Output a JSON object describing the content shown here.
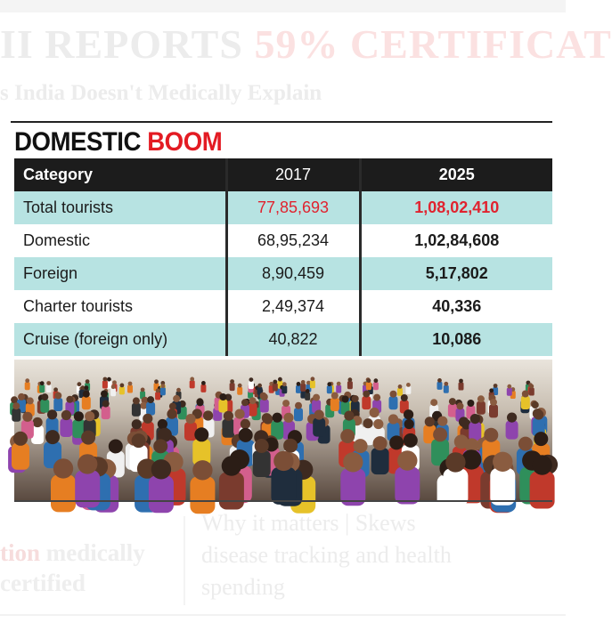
{
  "background": {
    "headline_black": "II REPORTS ",
    "headline_red": "59% CERTIFICAT",
    "subheadline": "s India Doesn't Medically Explain",
    "left_fragment_strong": "tion",
    "left_fragment_rest": " medically",
    "left_fragment_line2": "certified",
    "why_label": "Why it matters | Skews",
    "why_line2": "disease tracking and health",
    "why_line3": "spending"
  },
  "graphic": {
    "title_part1": "DOMESTIC",
    "title_part2": "BOOM",
    "title_accent_color": "#e31b23",
    "header": {
      "category": "Category",
      "year1": "2017",
      "year2": "2025"
    },
    "rows": [
      {
        "category": "Total tourists",
        "v2017": "77,85,693",
        "v2025": "1,08,02,410"
      },
      {
        "category": "Domestic",
        "v2017": "68,95,234",
        "v2025": "1,02,84,608"
      },
      {
        "category": "Foreign",
        "v2017": "8,90,459",
        "v2025": "5,17,802"
      },
      {
        "category": "Charter tourists",
        "v2017": "2,49,374",
        "v2025": "40,336"
      },
      {
        "category": "Cruise (foreign only)",
        "v2017": "40,822",
        "v2025": "10,086"
      }
    ],
    "row_band_color": "#b7e3e2",
    "photo_subject": "crowd-of-tourists-on-beach"
  }
}
